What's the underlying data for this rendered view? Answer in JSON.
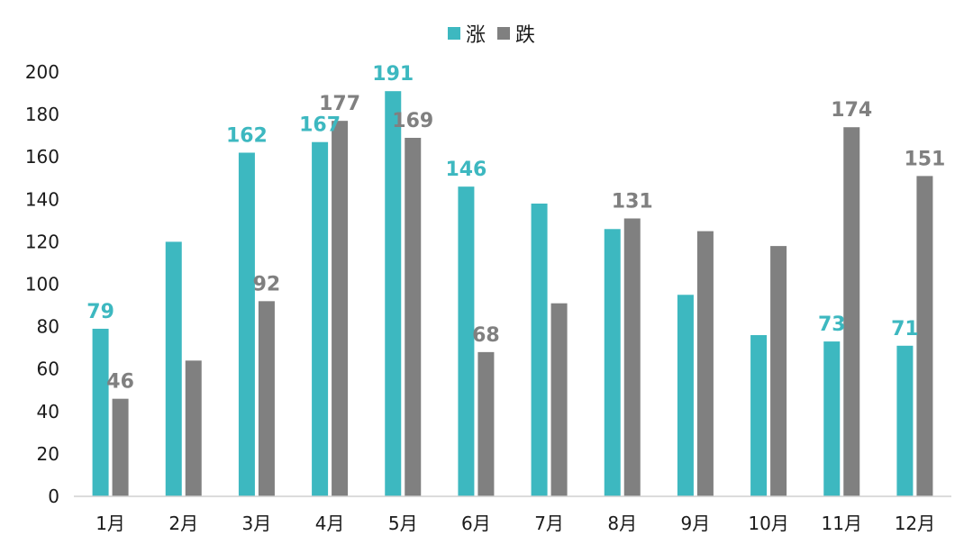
{
  "chart_data": {
    "type": "bar",
    "categories": [
      "1月",
      "2月",
      "3月",
      "4月",
      "5月",
      "6月",
      "7月",
      "8月",
      "9月",
      "10月",
      "11月",
      "12月"
    ],
    "series": [
      {
        "name": "涨",
        "color": "#3db8c0",
        "values": [
          79,
          120,
          162,
          167,
          191,
          146,
          138,
          126,
          95,
          76,
          73,
          71
        ],
        "labels": [
          "79",
          "",
          "162",
          "167",
          "191",
          "146",
          "",
          "",
          "",
          "",
          "73",
          "71"
        ]
      },
      {
        "name": "跌",
        "color": "#808080",
        "values": [
          46,
          64,
          92,
          177,
          169,
          68,
          91,
          131,
          125,
          118,
          174,
          151
        ],
        "labels": [
          "46",
          "",
          "92",
          "177",
          "169",
          "68",
          "",
          "131",
          "",
          "",
          "174",
          "151"
        ]
      }
    ],
    "ylim": [
      0,
      200
    ],
    "yticks": [
      "0",
      "20",
      "40",
      "60",
      "80",
      "100",
      "120",
      "140",
      "160",
      "180",
      "200"
    ],
    "grid": false,
    "legend_position": "top-center"
  }
}
